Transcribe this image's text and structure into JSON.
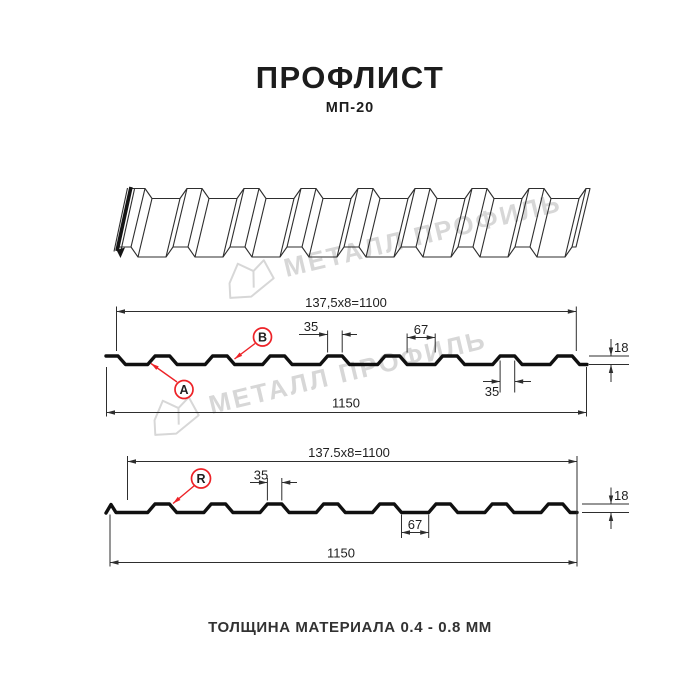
{
  "page": {
    "title": "ПРОФЛИСТ",
    "subtitle": "МП-20",
    "footer": "ТОЛЩИНА МАТЕРИАЛА 0.4 - 0.8 ММ"
  },
  "watermark": {
    "text": "МЕТАЛЛ ПРОФИЛЬ"
  },
  "colors": {
    "red": "#ed2227",
    "line": "#2e2e2e",
    "profile": "#101010",
    "watermark": "#d7d7d7"
  },
  "drawing": {
    "profile_top": {
      "module_dim": "137,5x8=1100",
      "overall_dim": "1150",
      "crest_dim_top": "35",
      "crest_dim_bottom": "35",
      "valley_dim": "67",
      "height_dim": "18",
      "marker_a": "A",
      "marker_b": "B"
    },
    "profile_bottom": {
      "module_dim": "137.5x8=1100",
      "overall_dim": "1150",
      "crest_dim": "35",
      "valley_dim": "67",
      "height_dim": "18",
      "marker_r": "R"
    }
  }
}
